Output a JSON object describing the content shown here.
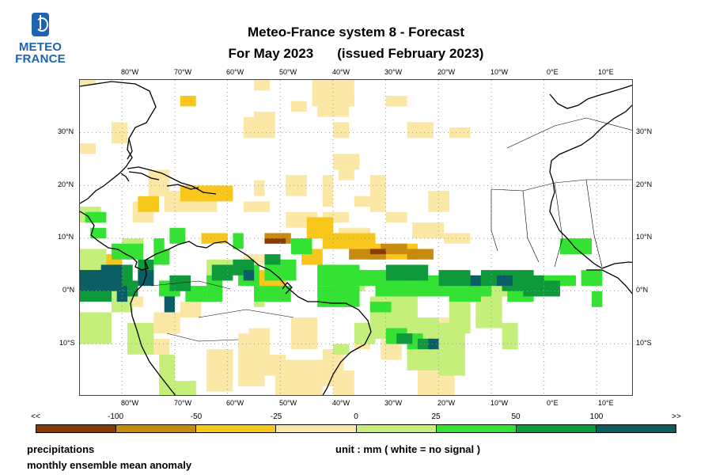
{
  "logo": {
    "line1": "METEO",
    "line2": "FRANCE"
  },
  "title": {
    "line1": "Meteo-France system 8  -  Forecast",
    "line2a": "For May 2023",
    "line2b": "(issued February 2023)"
  },
  "map": {
    "lon_labels": [
      "80°W",
      "70°W",
      "60°W",
      "50°W",
      "40°W",
      "30°W",
      "20°W",
      "10°W",
      "0°E",
      "10°E"
    ],
    "lat_labels": [
      "30°N",
      "20°N",
      "10°N",
      "0°N",
      "10°S"
    ]
  },
  "colorbar": {
    "labels": [
      "<<",
      "-100",
      "-50",
      "-25",
      "0",
      "25",
      "50",
      "100",
      ">>"
    ],
    "colors": [
      "#8b3a00",
      "#c98a10",
      "#f7c71c",
      "#fbe8a6",
      "#c3ef7a",
      "#33e233",
      "#0e9a3a",
      "#0b5e63"
    ]
  },
  "footer": {
    "variable": "precipitations",
    "description": "monthly ensemble mean anomaly",
    "unit_note": "unit : mm  ( white = no signal )"
  }
}
